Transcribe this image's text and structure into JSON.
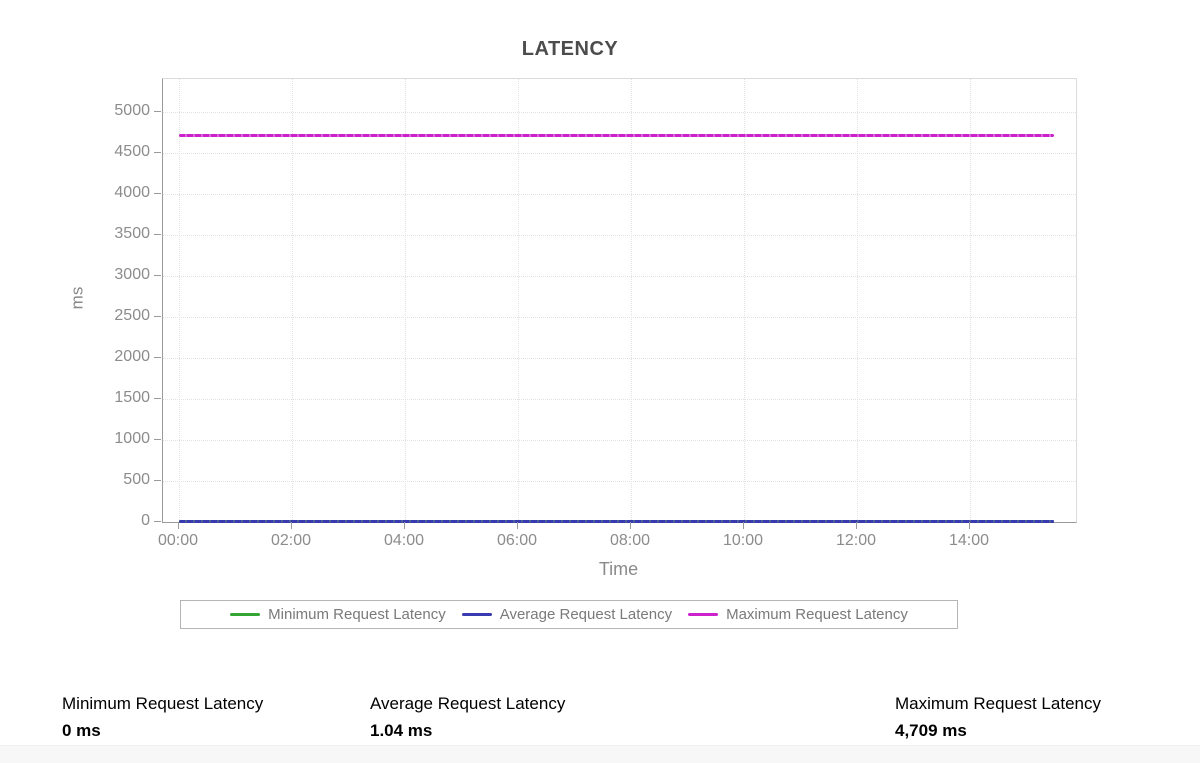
{
  "chart": {
    "title": "LATENCY",
    "y_axis_title": "ms",
    "x_axis_title": "Time"
  },
  "chart_data": {
    "type": "line",
    "title": "LATENCY",
    "xlabel": "Time",
    "ylabel": "ms",
    "x_ticks": [
      "00:00",
      "02:00",
      "04:00",
      "06:00",
      "08:00",
      "10:00",
      "12:00",
      "14:00"
    ],
    "y_ticks": [
      0,
      500,
      1000,
      1500,
      2000,
      2500,
      3000,
      3500,
      4000,
      4500,
      5000
    ],
    "ylim": [
      0,
      5400
    ],
    "x_range": [
      "00:00",
      "15:30"
    ],
    "grid": true,
    "legend_position": "bottom",
    "series": [
      {
        "name": "Minimum Request Latency",
        "color": "#33a532",
        "style": "dense-dash",
        "constant_value_ms": 0
      },
      {
        "name": "Average Request Latency",
        "color": "#3939b0",
        "style": "dense-dash",
        "constant_value_ms": 1.04
      },
      {
        "name": "Maximum Request Latency",
        "color": "#cc22cc",
        "style": "dense-dash",
        "constant_value_ms": 4709
      }
    ]
  },
  "stats": [
    {
      "label": "Minimum Request Latency",
      "value": "0 ms"
    },
    {
      "label": "Average Request Latency",
      "value": "1.04 ms"
    },
    {
      "label": "Maximum Request Latency",
      "value": "4,709 ms"
    }
  ]
}
